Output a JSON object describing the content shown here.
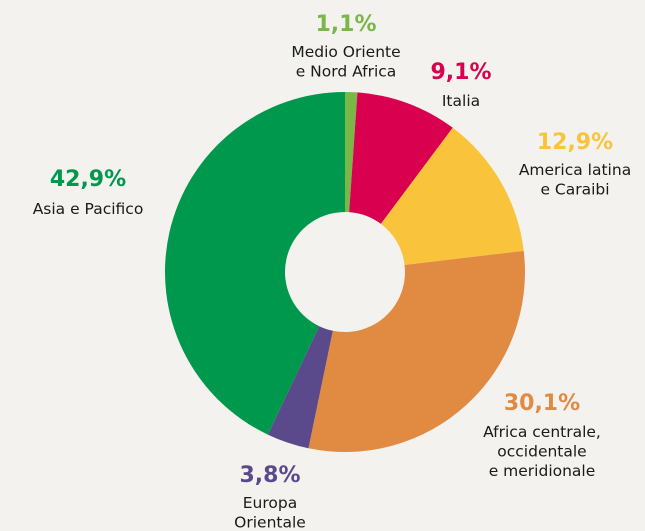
{
  "chart_data": {
    "type": "donut",
    "categories": [
      "Medio Oriente\ne Nord Africa",
      "Italia",
      "America latina\ne Caraibi",
      "Africa centrale,\noccidentale\ne meridionale",
      "Europa\nOrientale",
      "Asia e Pacifico"
    ],
    "values": [
      1.1,
      9.1,
      12.9,
      30.1,
      3.8,
      42.9
    ],
    "value_labels": [
      "1,1%",
      "9,1%",
      "12,9%",
      "30,1%",
      "3,8%",
      "42,9%"
    ],
    "colors": [
      "#7ab648",
      "#d9004f",
      "#f9c43c",
      "#e08a42",
      "#5a4a8c",
      "#00984c"
    ]
  }
}
